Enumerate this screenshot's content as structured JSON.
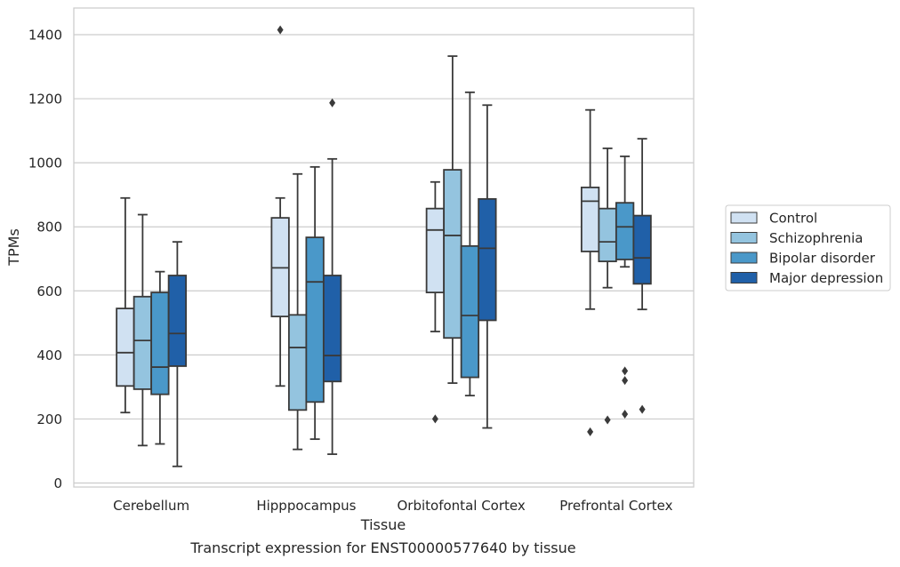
{
  "chart_data": {
    "type": "box",
    "caption": "Transcript expression for ENST00000577640 by tissue",
    "xlabel": "Tissue",
    "ylabel": "TPMs",
    "ylim": [
      -10,
      1480
    ],
    "yticks": [
      0,
      200,
      400,
      600,
      800,
      1000,
      1200,
      1400
    ],
    "ytick_labels": [
      "0",
      "200",
      "400",
      "600",
      "800",
      "1000",
      "1200",
      "1400"
    ],
    "grid": "horizontal",
    "legend_position": "right",
    "categories": [
      "Cerebellum",
      "Hipppocampus",
      "Orbitofontal Cortex",
      "Prefrontal Cortex"
    ],
    "series": [
      {
        "name": "Control",
        "color": "#d0e1f2",
        "boxes": [
          {
            "whisker_low": 220,
            "q1": 303,
            "median": 407,
            "q3": 545,
            "whisker_high": 890,
            "outliers": []
          },
          {
            "whisker_low": 303,
            "q1": 520,
            "median": 672,
            "q3": 828,
            "whisker_high": 890,
            "outliers": [
              1415
            ]
          },
          {
            "whisker_low": 473,
            "q1": 595,
            "median": 790,
            "q3": 857,
            "whisker_high": 940,
            "outliers": [
              200
            ]
          },
          {
            "whisker_low": 543,
            "q1": 723,
            "median": 880,
            "q3": 923,
            "whisker_high": 1165,
            "outliers": [
              160
            ]
          }
        ]
      },
      {
        "name": "Schizophrenia",
        "color": "#94c4df",
        "boxes": [
          {
            "whisker_low": 117,
            "q1": 293,
            "median": 445,
            "q3": 582,
            "whisker_high": 838,
            "outliers": []
          },
          {
            "whisker_low": 105,
            "q1": 228,
            "median": 423,
            "q3": 525,
            "whisker_high": 965,
            "outliers": []
          },
          {
            "whisker_low": 312,
            "q1": 453,
            "median": 773,
            "q3": 978,
            "whisker_high": 1333,
            "outliers": []
          },
          {
            "whisker_low": 610,
            "q1": 692,
            "median": 753,
            "q3": 857,
            "whisker_high": 1045,
            "outliers": [
              197
            ]
          }
        ]
      },
      {
        "name": "Bipolar disorder",
        "color": "#4a98c9",
        "boxes": [
          {
            "whisker_low": 122,
            "q1": 277,
            "median": 362,
            "q3": 595,
            "whisker_high": 660,
            "outliers": []
          },
          {
            "whisker_low": 137,
            "q1": 253,
            "median": 628,
            "q3": 767,
            "whisker_high": 987,
            "outliers": []
          },
          {
            "whisker_low": 273,
            "q1": 330,
            "median": 523,
            "q3": 740,
            "whisker_high": 1220,
            "outliers": []
          },
          {
            "whisker_low": 675,
            "q1": 698,
            "median": 800,
            "q3": 875,
            "whisker_high": 1020,
            "outliers": [
              350,
              320,
              215
            ]
          }
        ]
      },
      {
        "name": "Major depression",
        "color": "#2060a8",
        "boxes": [
          {
            "whisker_low": 52,
            "q1": 365,
            "median": 467,
            "q3": 648,
            "whisker_high": 753,
            "outliers": []
          },
          {
            "whisker_low": 90,
            "q1": 317,
            "median": 398,
            "q3": 648,
            "whisker_high": 1012,
            "outliers": [
              1187
            ]
          },
          {
            "whisker_low": 172,
            "q1": 508,
            "median": 733,
            "q3": 887,
            "whisker_high": 1180,
            "outliers": []
          },
          {
            "whisker_low": 542,
            "q1": 622,
            "median": 703,
            "q3": 835,
            "whisker_high": 1075,
            "outliers": [
              230
            ]
          }
        ]
      }
    ]
  }
}
